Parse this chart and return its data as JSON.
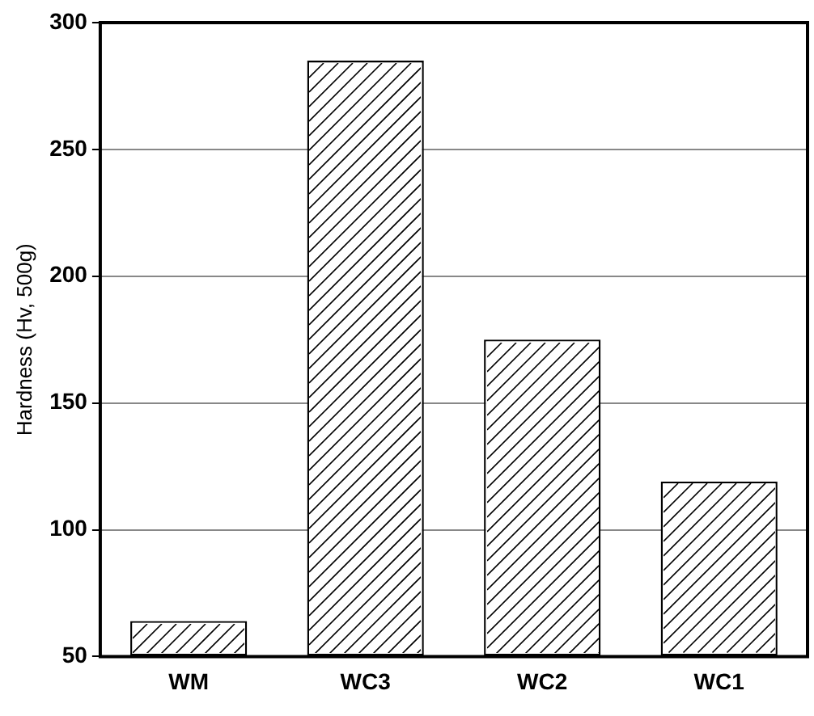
{
  "chart_data": {
    "type": "bar",
    "ylabel": "Hardness (Hv, 500g)",
    "categories": [
      "WM",
      "WC3",
      "WC2",
      "WC1"
    ],
    "values": [
      64,
      285,
      175,
      119
    ],
    "color": "#ffffff",
    "ylim": [
      50,
      300
    ],
    "yticks": [
      50,
      100,
      150,
      200,
      250,
      300
    ],
    "grid": "y"
  }
}
